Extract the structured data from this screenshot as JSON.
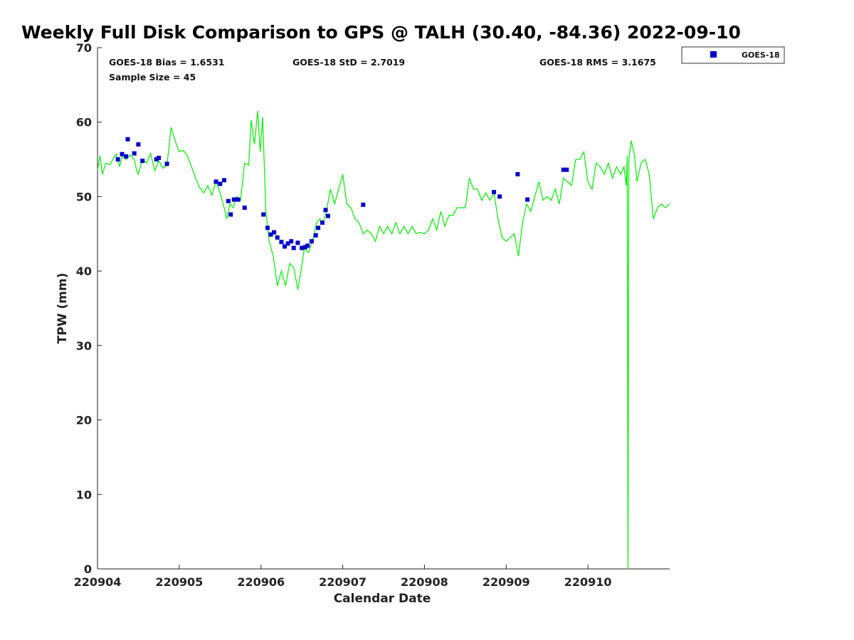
{
  "chart_data": {
    "type": "scatter",
    "title": "Weekly Full Disk Comparison to GPS @ TALH (30.40, -84.36) 2022-09-10",
    "xlabel": "Calendar Date",
    "ylabel": "TPW (mm)",
    "xlim": [
      220904,
      220911
    ],
    "ylim": [
      0,
      70
    ],
    "x_ticks": [
      "220904",
      "220905",
      "220906",
      "220907",
      "220908",
      "220909",
      "220910"
    ],
    "y_ticks": [
      "0",
      "10",
      "20",
      "30",
      "40",
      "50",
      "60",
      "70"
    ],
    "grid": false,
    "legend_position": "top-right, outside plot",
    "stats": {
      "bias": "GOES-18 Bias = 1.6531",
      "std": "GOES-18 StD = 2.7019",
      "rms": "GOES-18 RMS = 3.1675",
      "sample": "Sample Size = 45"
    },
    "series": [
      {
        "name": "GOES-18",
        "kind": "scatter",
        "color": "#0000cc",
        "x": [
          220904.25,
          220904.3,
          220904.35,
          220904.37,
          220904.45,
          220904.5,
          220904.55,
          220904.72,
          220904.75,
          220904.85,
          220905.45,
          220905.5,
          220905.55,
          220905.6,
          220905.63,
          220905.67,
          220905.72,
          220905.8,
          220906.03,
          220906.08,
          220906.12,
          220906.16,
          220906.2,
          220906.25,
          220906.29,
          220906.33,
          220906.37,
          220906.4,
          220906.45,
          220906.5,
          220906.54,
          220906.57,
          220906.62,
          220906.67,
          220906.7,
          220906.75,
          220906.79,
          220906.82,
          220907.25,
          220908.85,
          220908.92,
          220909.14,
          220909.26,
          220909.7,
          220909.74
        ],
        "y": [
          55,
          55.7,
          55.4,
          57.7,
          55.8,
          57,
          54.8,
          55,
          55.2,
          54.4,
          52,
          51.7,
          52.2,
          49.4,
          47.6,
          49.6,
          49.6,
          48.5,
          47.6,
          45.8,
          44.9,
          45.2,
          44.5,
          43.9,
          43.3,
          43.7,
          44,
          43.1,
          43.8,
          43.1,
          43.2,
          43.4,
          44,
          44.8,
          45.8,
          46.5,
          48.2,
          47.4,
          48.9,
          50.6,
          50,
          53,
          49.6,
          53.6,
          53.6
        ]
      },
      {
        "name": "",
        "kind": "line",
        "color": "#00ee00",
        "x": [
          220904.0,
          220904.03,
          220904.06,
          220904.1,
          220904.15,
          220904.2,
          220904.23,
          220904.27,
          220904.3,
          220904.35,
          220904.4,
          220904.45,
          220904.48,
          220904.5,
          220904.55,
          220904.6,
          220904.65,
          220904.7,
          220904.75,
          220904.8,
          220904.85,
          220904.9,
          220904.95,
          220905.0,
          220905.05,
          220905.1,
          220905.15,
          220905.2,
          220905.25,
          220905.3,
          220905.35,
          220905.4,
          220905.45,
          220905.5,
          220905.55,
          220905.58,
          220905.62,
          220905.66,
          220905.7,
          220905.75,
          220905.8,
          220905.85,
          220905.88,
          220905.92,
          220905.96,
          220905.99,
          220906.02,
          220906.06,
          220906.1,
          220906.15,
          220906.2,
          220906.25,
          220906.3,
          220906.35,
          220906.4,
          220906.45,
          220906.49,
          220906.53,
          220906.58,
          220906.63,
          220906.68,
          220906.72,
          220906.76,
          220906.8,
          220906.85,
          220906.9,
          220906.95,
          220907.0,
          220907.05,
          220907.1,
          220907.15,
          220907.2,
          220907.25,
          220907.3,
          220907.35,
          220907.4,
          220907.45,
          220907.5,
          220907.55,
          220907.6,
          220907.65,
          220907.7,
          220907.75,
          220907.8,
          220907.85,
          220907.9,
          220907.95,
          220908.0,
          220908.05,
          220908.1,
          220908.15,
          220908.2,
          220908.25,
          220908.3,
          220908.35,
          220908.4,
          220908.45,
          220908.5,
          220908.55,
          220908.6,
          220908.65,
          220908.7,
          220908.75,
          220908.8,
          220908.85,
          220908.9,
          220908.95,
          220909.0,
          220909.05,
          220909.1,
          220909.15,
          220909.2,
          220909.25,
          220909.3,
          220909.35,
          220909.4,
          220909.45,
          220909.5,
          220909.55,
          220909.6,
          220909.65,
          220909.7,
          220909.75,
          220909.8,
          220909.85,
          220909.9,
          220909.95,
          220910.0,
          220910.05,
          220910.1,
          220910.15,
          220910.2,
          220910.25,
          220910.3,
          220910.35,
          220910.4,
          220910.44,
          220910.47,
          220910.48,
          220910.49,
          220910.5,
          220910.53,
          220910.57,
          220910.6,
          220910.65,
          220910.7,
          220910.75,
          220910.8,
          220910.85,
          220910.9,
          220910.95,
          220911.0
        ],
        "y": [
          53.5,
          55.5,
          53.0,
          54.5,
          54.3,
          55.2,
          55.7,
          54.0,
          55.4,
          55.0,
          55.6,
          55.0,
          53.5,
          53.0,
          55.0,
          54.5,
          55.8,
          53.5,
          54.8,
          53.8,
          54.2,
          59.3,
          57.5,
          56.0,
          56.2,
          55.5,
          54.0,
          52.5,
          51.2,
          50.5,
          51.5,
          50.2,
          52.0,
          50.5,
          48.5,
          47.0,
          49.0,
          48.5,
          50.0,
          49.5,
          54.5,
          54.2,
          60.3,
          57.0,
          61.5,
          56.0,
          60.7,
          48.0,
          44.0,
          42.0,
          38.0,
          40.0,
          38.0,
          41.0,
          40.5,
          37.5,
          40.0,
          43.0,
          42.5,
          44.0,
          46.5,
          47.0,
          46.5,
          48.0,
          51.0,
          49.0,
          51.0,
          53.0,
          49.0,
          48.5,
          47.0,
          46.5,
          45.0,
          45.5,
          45.0,
          44.0,
          46.0,
          45.0,
          46.0,
          45.0,
          46.5,
          45.0,
          46.0,
          45.0,
          46.0,
          45.0,
          45.2,
          45.0,
          45.5,
          47.0,
          45.5,
          48.0,
          46.0,
          47.5,
          47.5,
          48.5,
          48.5,
          48.5,
          52.5,
          51.0,
          51.0,
          49.5,
          50.5,
          49.5,
          50.5,
          47.0,
          44.5,
          44.0,
          44.5,
          45.0,
          42.0,
          46.5,
          49.0,
          48.0,
          50.0,
          52.0,
          49.5,
          50.0,
          49.5,
          51.0,
          49.0,
          52.5,
          52.0,
          51.5,
          55.0,
          55.0,
          56.0,
          52.0,
          51.0,
          54.5,
          54.0,
          53.0,
          54.5,
          52.5,
          54.0,
          53.0,
          54.0,
          51.5,
          55.5,
          0.0,
          55.0,
          57.5,
          55.5,
          52.0,
          54.5,
          55.0,
          53.0,
          47.0,
          48.5,
          49.0,
          48.5,
          49.0
        ]
      }
    ]
  }
}
